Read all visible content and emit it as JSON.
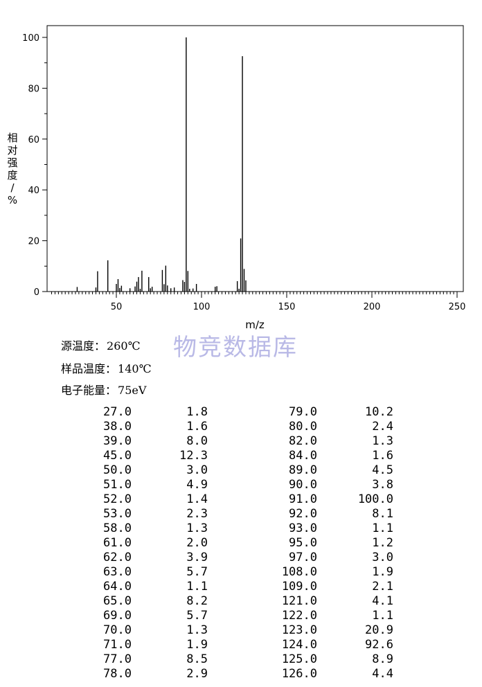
{
  "chart_data": {
    "type": "bar",
    "xlabel": "m/z",
    "ylabel": "相对强度/%",
    "xlim": [
      10,
      252
    ],
    "ylim": [
      0,
      105
    ],
    "xticks": [
      50,
      100,
      150,
      200,
      250
    ],
    "yticks": [
      0,
      20,
      40,
      60,
      80,
      100
    ],
    "x": [
      27,
      38,
      39,
      45,
      50,
      51,
      52,
      53,
      58,
      61,
      62,
      63,
      64,
      65,
      69,
      70,
      71,
      77,
      78,
      79,
      80,
      82,
      84,
      89,
      90,
      91,
      92,
      93,
      95,
      97,
      108,
      109,
      121,
      122,
      123,
      124,
      125,
      126
    ],
    "values": [
      1.8,
      1.6,
      8.0,
      12.3,
      3.0,
      4.9,
      1.4,
      2.3,
      1.3,
      2.0,
      3.9,
      5.7,
      1.1,
      8.2,
      5.7,
      1.3,
      1.9,
      8.5,
      2.9,
      10.2,
      2.4,
      1.3,
      1.6,
      4.5,
      3.8,
      100.0,
      8.1,
      1.1,
      1.2,
      3.0,
      1.9,
      2.1,
      4.1,
      1.1,
      20.9,
      92.6,
      8.9,
      4.4
    ],
    "grid": false,
    "legend": "none"
  },
  "watermark": "物竞数据库",
  "conditions": [
    {
      "label": "源温度",
      "sep": "：",
      "value": "260℃"
    },
    {
      "label": "样品温度",
      "sep": "：",
      "value": "140℃"
    },
    {
      "label": "电子能量",
      "sep": "：",
      "value": "75eV"
    }
  ],
  "peak_table": [
    [
      "27.0",
      "1.8",
      "79.0",
      "10.2"
    ],
    [
      "38.0",
      "1.6",
      "80.0",
      "2.4"
    ],
    [
      "39.0",
      "8.0",
      "82.0",
      "1.3"
    ],
    [
      "45.0",
      "12.3",
      "84.0",
      "1.6"
    ],
    [
      "50.0",
      "3.0",
      "89.0",
      "4.5"
    ],
    [
      "51.0",
      "4.9",
      "90.0",
      "3.8"
    ],
    [
      "52.0",
      "1.4",
      "91.0",
      "100.0"
    ],
    [
      "53.0",
      "2.3",
      "92.0",
      "8.1"
    ],
    [
      "58.0",
      "1.3",
      "93.0",
      "1.1"
    ],
    [
      "61.0",
      "2.0",
      "95.0",
      "1.2"
    ],
    [
      "62.0",
      "3.9",
      "97.0",
      "3.0"
    ],
    [
      "63.0",
      "5.7",
      "108.0",
      "1.9"
    ],
    [
      "64.0",
      "1.1",
      "109.0",
      "2.1"
    ],
    [
      "65.0",
      "8.2",
      "121.0",
      "4.1"
    ],
    [
      "69.0",
      "5.7",
      "122.0",
      "1.1"
    ],
    [
      "70.0",
      "1.3",
      "123.0",
      "20.9"
    ],
    [
      "71.0",
      "1.9",
      "124.0",
      "92.6"
    ],
    [
      "77.0",
      "8.5",
      "125.0",
      "8.9"
    ],
    [
      "78.0",
      "2.9",
      "126.0",
      "4.4"
    ]
  ]
}
